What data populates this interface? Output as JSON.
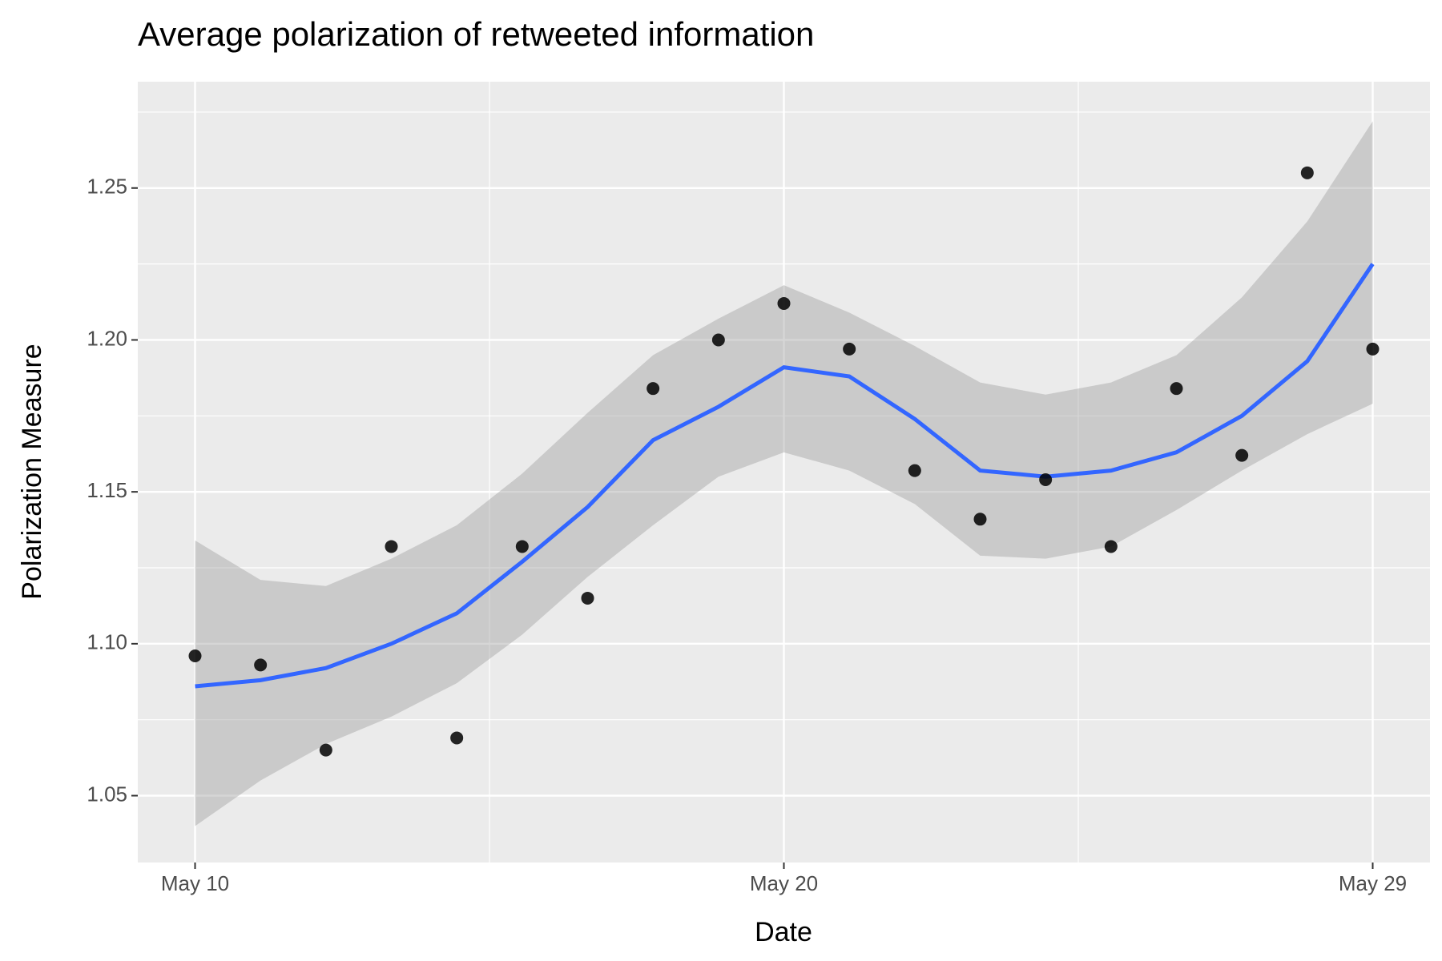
{
  "chart_data": {
    "type": "scatter",
    "title": "Average polarization of retweeted information",
    "x_label": "Date",
    "y_label": "Polarization Measure",
    "categories": [
      "May 10",
      null,
      null,
      null,
      null,
      null,
      null,
      null,
      null,
      "May 20",
      null,
      null,
      null,
      null,
      null,
      null,
      null,
      null,
      "May 29"
    ],
    "values": [
      1.096,
      1.093,
      1.065,
      1.132,
      1.069,
      1.132,
      1.115,
      1.184,
      1.2,
      1.212,
      1.197,
      1.157,
      1.141,
      1.154,
      1.132,
      1.184,
      1.162,
      1.255,
      1.197
    ],
    "color": "#000000",
    "smooth": {
      "color": "#3366ff",
      "values": [
        1.086,
        1.088,
        1.092,
        1.1,
        1.11,
        1.127,
        1.145,
        1.167,
        1.178,
        1.191,
        1.188,
        1.174,
        1.157,
        1.155,
        1.157,
        1.163,
        1.175,
        1.193,
        1.225
      ],
      "lower": [
        1.04,
        1.055,
        1.067,
        1.076,
        1.087,
        1.103,
        1.122,
        1.139,
        1.155,
        1.163,
        1.157,
        1.146,
        1.129,
        1.128,
        1.132,
        1.144,
        1.157,
        1.169,
        1.179
      ],
      "upper": [
        1.134,
        1.121,
        1.119,
        1.128,
        1.139,
        1.156,
        1.176,
        1.195,
        1.207,
        1.218,
        1.209,
        1.198,
        1.186,
        1.182,
        1.186,
        1.195,
        1.214,
        1.239,
        1.272
      ],
      "band_color": "#999999"
    },
    "ylim": [
      1.028,
      1.285
    ],
    "yticks": [
      1.05,
      {
        "value": 1.1,
        "label": "1.10"
      },
      1.15,
      {
        "value": 1.2,
        "label": "1.20"
      },
      1.25
    ],
    "grid": true,
    "panel_color": "#ebebeb"
  }
}
